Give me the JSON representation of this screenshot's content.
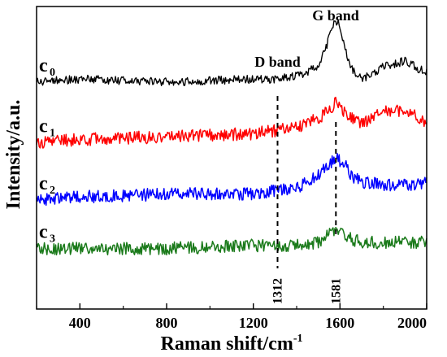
{
  "chart_data": {
    "type": "line",
    "title": "",
    "xlabel": "Raman shift/cm",
    "xlabel_superscript": "-1",
    "ylabel": "Intensity/a.u.",
    "xlim": [
      200,
      2000
    ],
    "ylim": [
      0,
      100
    ],
    "x_ticks": [
      400,
      800,
      1200,
      1600,
      2000
    ],
    "x_tick_labels": [
      "400",
      "800",
      "1200",
      "1600",
      "2000"
    ],
    "y_ticks_labeled": false,
    "grid": false,
    "legend": "none",
    "series": [
      {
        "name": "c0",
        "label_main": "c",
        "label_sub": "0",
        "color": "#000000",
        "offset": 75,
        "x": [
          200,
          400,
          800,
          1200,
          1300,
          1400,
          1500,
          1540,
          1560,
          1580,
          1600,
          1620,
          1650,
          1700,
          1800,
          1900,
          2000
        ],
        "y": [
          75,
          76,
          75,
          76,
          76,
          77,
          80,
          87,
          93,
          95,
          94,
          87,
          80,
          76,
          80,
          82,
          78
        ]
      },
      {
        "name": "c1",
        "label_main": "c",
        "label_sub": "1",
        "color": "#ff0000",
        "offset": 55,
        "x": [
          200,
          400,
          800,
          1200,
          1300,
          1400,
          1500,
          1550,
          1580,
          1600,
          1650,
          1700,
          1800,
          1900,
          2000
        ],
        "y": [
          55,
          56,
          57,
          58,
          59,
          60,
          63,
          66,
          68,
          67,
          63,
          61,
          65,
          66,
          62
        ]
      },
      {
        "name": "c2",
        "label_main": "c",
        "label_sub": "2",
        "color": "#0000ff",
        "offset": 36,
        "x": [
          200,
          400,
          800,
          1200,
          1300,
          1400,
          1500,
          1540,
          1580,
          1620,
          1650,
          1700,
          1800,
          1900,
          2000
        ],
        "y": [
          36,
          37,
          38,
          38,
          39,
          40,
          44,
          47,
          50,
          48,
          44,
          42,
          41,
          41,
          42
        ]
      },
      {
        "name": "c3",
        "label_main": "c",
        "label_sub": "3",
        "color": "#1a7a1a",
        "offset": 20,
        "x": [
          200,
          400,
          800,
          1200,
          1300,
          1400,
          1500,
          1560,
          1580,
          1620,
          1700,
          1800,
          1900,
          2000
        ],
        "y": [
          20,
          20,
          20,
          21,
          21,
          21,
          22,
          25,
          26,
          24,
          22,
          22,
          22,
          22
        ]
      }
    ],
    "annotations": [
      {
        "text": "G band",
        "x": 1580
      },
      {
        "text": "D band",
        "x": 1312
      }
    ],
    "vertical_markers": [
      {
        "x": 1312,
        "label": "1312"
      },
      {
        "x": 1581,
        "label": "1581"
      }
    ]
  }
}
